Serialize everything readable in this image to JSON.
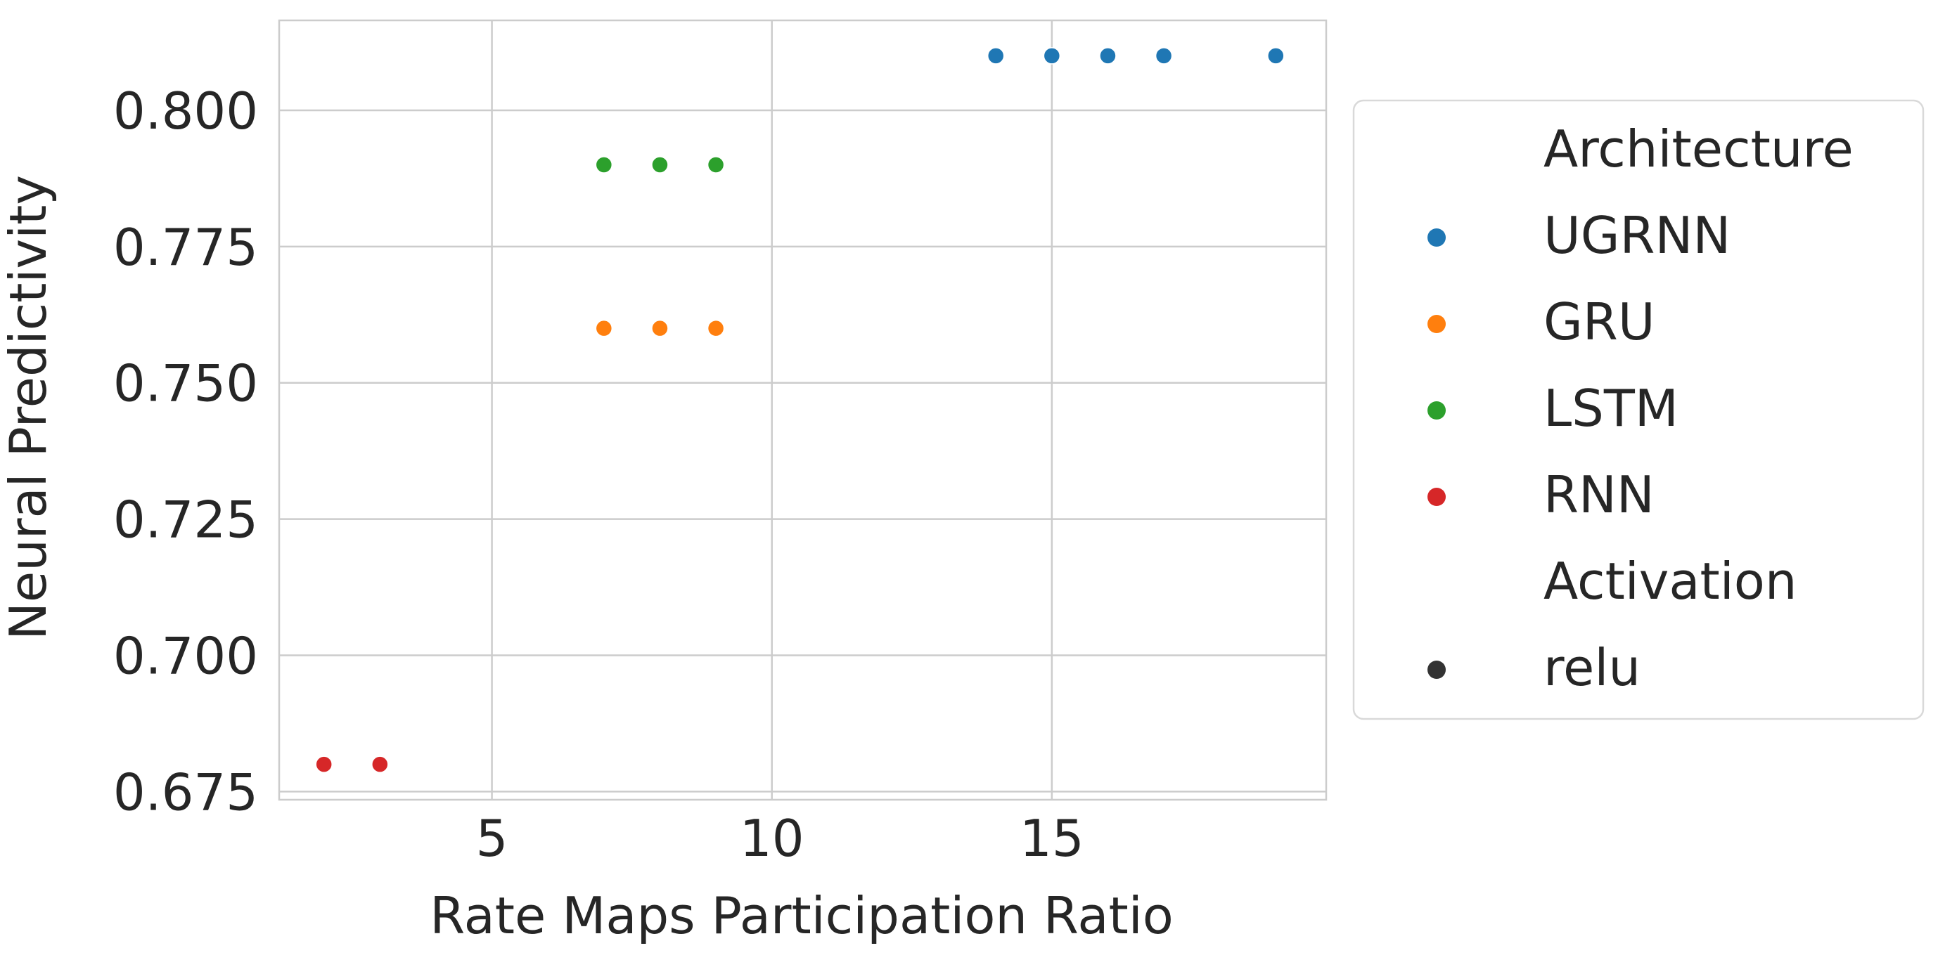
{
  "chart_data": {
    "type": "scatter",
    "xlabel": "Rate Maps Participation Ratio",
    "ylabel": "Neural Predictivity",
    "xlim": [
      1.2,
      19.9
    ],
    "ylim": [
      0.6735,
      0.8165
    ],
    "xticks": [
      5,
      10,
      15
    ],
    "xtick_labels": [
      "5",
      "10",
      "15"
    ],
    "yticks": [
      0.675,
      0.7,
      0.725,
      0.75,
      0.775,
      0.8
    ],
    "ytick_labels": [
      "0.675",
      "0.700",
      "0.725",
      "0.750",
      "0.775",
      "0.800"
    ],
    "grid": true,
    "legend_position": "outside-right",
    "legend": {
      "hue_title": "Architecture",
      "style_title": "Activation"
    },
    "series": [
      {
        "name": "UGRNN",
        "color": "#1f77b4",
        "points": [
          [
            14,
            0.81
          ],
          [
            15,
            0.81
          ],
          [
            16,
            0.81
          ],
          [
            17,
            0.81
          ],
          [
            19,
            0.81
          ]
        ]
      },
      {
        "name": "GRU",
        "color": "#ff7f0e",
        "points": [
          [
            7,
            0.76
          ],
          [
            8,
            0.76
          ],
          [
            9,
            0.76
          ]
        ]
      },
      {
        "name": "LSTM",
        "color": "#2ca02c",
        "points": [
          [
            7,
            0.79
          ],
          [
            8,
            0.79
          ],
          [
            9,
            0.79
          ]
        ]
      },
      {
        "name": "RNN",
        "color": "#d62728",
        "points": [
          [
            2,
            0.68
          ],
          [
            3,
            0.68
          ]
        ]
      }
    ],
    "style_entries": [
      {
        "name": "relu",
        "color": "#333333"
      }
    ]
  }
}
